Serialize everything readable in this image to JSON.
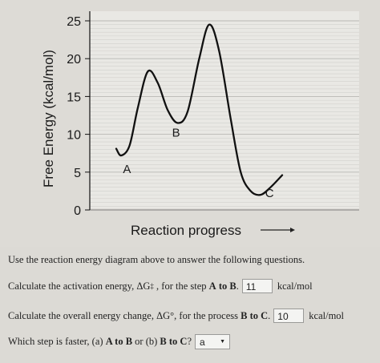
{
  "chart_data": {
    "type": "line",
    "ylabel": "Free Energy (kcal/mol)",
    "xlabel": "Reaction progress",
    "ylim": [
      0,
      25
    ],
    "yticks": [
      "0",
      "5",
      "10",
      "15",
      "20",
      "25"
    ],
    "grid": true,
    "series": [
      {
        "x": [
          0.0,
          0.03,
          0.08,
          0.13,
          0.19,
          0.25,
          0.31,
          0.37,
          0.43,
          0.5,
          0.56,
          0.62,
          0.69,
          0.75,
          0.81,
          0.87,
          0.93,
          1.0
        ],
        "y": [
          8.1,
          7.2,
          8.5,
          13.5,
          18.3,
          16.8,
          13.2,
          11.5,
          13.0,
          20.0,
          24.5,
          21.0,
          12.0,
          5.0,
          2.5,
          2.0,
          3.0,
          4.6
        ]
      }
    ],
    "annotations": [
      {
        "label": "A",
        "x": 0.05,
        "y": 7.0
      },
      {
        "label": "B",
        "x": 0.37,
        "y": 11.5
      },
      {
        "label": "C",
        "x": 0.89,
        "y": 2.0
      }
    ]
  },
  "questions": {
    "intro": "Use the reaction energy diagram above to answer the following questions.",
    "q1_prefix": "Calculate the activation energy, ΔG",
    "q1_sup": "‡",
    "q1_mid": " , for the step ",
    "q1_from": "A",
    "q1_to_word": " to ",
    "q1_to": "B",
    "q1_period": ".",
    "q1_answer": "11",
    "q1_unit": "kcal/mol",
    "q2_prefix": "Calculate the overall energy change, ΔG°, for the process ",
    "q2_bold": "B to C",
    "q2_period": ".",
    "q2_answer": "10",
    "q2_unit": "kcal/mol",
    "q3_prefix": "Which step is faster, (a) ",
    "q3_a": "A to B",
    "q3_or": " or (b) ",
    "q3_b": "B to C",
    "q3_suffix": "?",
    "q3_selected": "a"
  }
}
